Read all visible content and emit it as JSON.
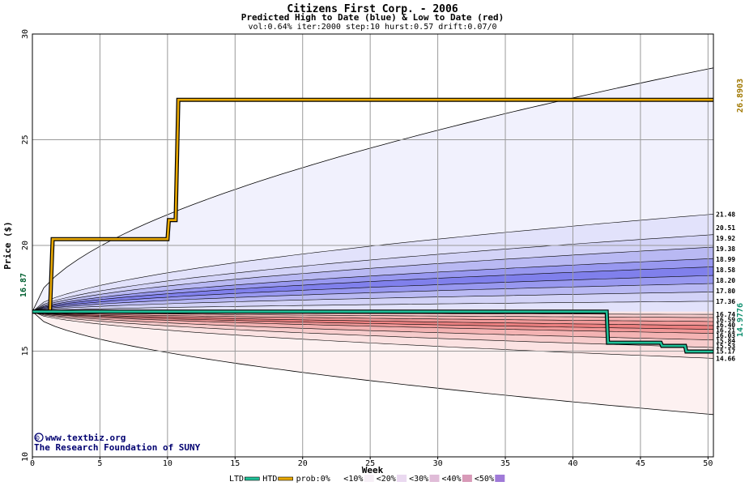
{
  "chart_data": {
    "type": "area",
    "title": "Citizens First Corp. - 2006",
    "subtitle": "Predicted High to Date (blue) &  Low to Date (red)",
    "params": "vol:0.64% iter:2000 step:10 hurst:0.57 drift:0.07/0",
    "xlabel": "Week",
    "ylabel": "Price ($)",
    "xlim": [
      0,
      50.4
    ],
    "ylim": [
      10,
      30
    ],
    "x_ticks": [
      0,
      5,
      10,
      15,
      20,
      25,
      30,
      35,
      40,
      45,
      50
    ],
    "y_ticks": [
      10,
      15,
      20,
      25,
      30
    ],
    "grid": true,
    "start_price": 16.87,
    "start_price_label": "16.87",
    "htd_final_label": "26.8903",
    "ltd_final_label": "14.9776",
    "edge_labels": [
      "21.48",
      "20.51",
      "19.92",
      "19.38",
      "18.99",
      "18.58",
      "18.20",
      "17.80",
      "17.36",
      "16.74",
      "16.59",
      "16.40",
      "16.21",
      "16.03",
      "15.84",
      "15.53",
      "15.17",
      "14.66"
    ],
    "high_bands": [
      {
        "end": 28.4,
        "color": "#f1f1fd"
      },
      {
        "end": 21.48,
        "color": "#e2e2fb"
      },
      {
        "end": 20.51,
        "color": "#d3d3f7"
      },
      {
        "end": 19.92,
        "color": "#b9b9f3"
      },
      {
        "end": 19.38,
        "color": "#9898f0"
      },
      {
        "end": 18.99,
        "color": "#8080ec"
      },
      {
        "end": 18.58,
        "color": "#9898f0"
      },
      {
        "end": 18.2,
        "color": "#b9b9f3"
      },
      {
        "end": 17.8,
        "color": "#d3d3f7"
      },
      {
        "end": 17.36,
        "color": "#e2e2fb"
      }
    ],
    "low_bands": [
      {
        "end": 12.0,
        "color": "#fdf1f1"
      },
      {
        "end": 14.66,
        "color": "#fbe2e2"
      },
      {
        "end": 15.17,
        "color": "#f7cccc"
      },
      {
        "end": 15.53,
        "color": "#f4b3b3"
      },
      {
        "end": 15.84,
        "color": "#f09898"
      },
      {
        "end": 16.03,
        "color": "#ec8080"
      },
      {
        "end": 16.21,
        "color": "#f09898"
      },
      {
        "end": 16.4,
        "color": "#f4b3b3"
      },
      {
        "end": 16.59,
        "color": "#f7cccc"
      },
      {
        "end": 16.74,
        "color": "#fbe2e2"
      }
    ],
    "series": [
      {
        "name": "HTD",
        "color": "#e8a800",
        "x": [
          0,
          1.3,
          1.5,
          10,
          10.1,
          10.6,
          10.8,
          50.4
        ],
        "y": [
          16.87,
          16.87,
          20.3,
          20.3,
          21.2,
          21.2,
          26.89,
          26.89
        ]
      },
      {
        "name": "LTD",
        "color": "#20c098",
        "x": [
          0,
          42.5,
          42.6,
          46.5,
          46.6,
          48.3,
          48.4,
          50.4
        ],
        "y": [
          16.87,
          16.87,
          15.4,
          15.4,
          15.25,
          15.25,
          14.98,
          14.98
        ]
      }
    ],
    "legend": {
      "items": [
        {
          "label": "LTD",
          "color": "#20c098",
          "kind": "line"
        },
        {
          "label": "HTD",
          "color": "#e8a800",
          "kind": "line"
        },
        {
          "label": "prob:0%",
          "color": "#ffffff",
          "kind": "box"
        },
        {
          "label": "<10%",
          "color": "#f6eff6",
          "kind": "box"
        },
        {
          "label": "<20%",
          "color": "#ead9f0",
          "kind": "box"
        },
        {
          "label": "<30%",
          "color": "#e0bcd8",
          "kind": "box"
        },
        {
          "label": "<40%",
          "color": "#d89ab8",
          "kind": "box"
        },
        {
          "label": "<50%",
          "color": "#a07ad8",
          "kind": "box"
        }
      ]
    }
  },
  "credit": {
    "site": "www.textbiz.org",
    "org": "The Research Foundation of SUNY",
    "copyright_symbol": "©"
  }
}
